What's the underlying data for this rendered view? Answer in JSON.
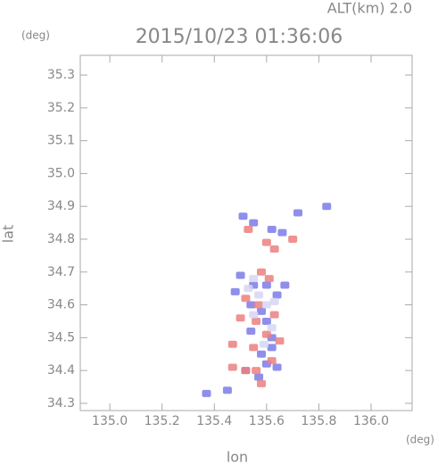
{
  "chart_data": {
    "type": "scatter",
    "title": "2015/10/23 01:36:06",
    "subtitle": "ALT(km) 2.0",
    "y_unit": "(deg)",
    "x_unit": "(deg)",
    "x_label": "lon",
    "y_label": "lat",
    "xlim": [
      134.887,
      136.157
    ],
    "ylim": [
      34.278,
      35.36
    ],
    "xticks": [
      {
        "value": 135,
        "label": "135.0"
      },
      135.2,
      135.4,
      135.6,
      135.8,
      {
        "value": 136,
        "label": "136.0"
      }
    ],
    "yticks": [
      34.3,
      34.4,
      34.5,
      34.6,
      34.7,
      34.8,
      34.9,
      {
        "value": 35,
        "label": "35.0"
      },
      35.1,
      35.2,
      35.3
    ],
    "series": [
      {
        "color": "#7b7be8",
        "x": [
          135.51,
          135.55,
          135.62,
          135.66,
          135.72,
          135.83,
          135.5,
          135.55,
          135.6,
          135.64,
          135.54,
          135.58,
          135.6,
          135.54,
          135.62,
          135.58,
          135.64,
          135.6,
          135.52,
          135.45,
          135.37,
          135.48,
          135.67,
          135.57,
          135.62
        ],
        "values": [
          34.87,
          34.85,
          34.83,
          34.82,
          34.88,
          34.9,
          34.69,
          34.66,
          34.66,
          34.63,
          34.6,
          34.58,
          34.55,
          34.52,
          34.5,
          34.45,
          34.41,
          34.42,
          34.4,
          34.34,
          34.33,
          34.64,
          34.66,
          34.38,
          34.47
        ]
      },
      {
        "color": "#ec7f7f",
        "x": [
          135.53,
          135.6,
          135.63,
          135.7,
          135.58,
          135.61,
          135.52,
          135.57,
          135.63,
          135.56,
          135.6,
          135.55,
          135.47,
          135.47,
          135.52,
          135.56,
          135.62,
          135.58,
          135.65,
          135.5
        ],
        "values": [
          34.83,
          34.79,
          34.77,
          34.8,
          34.7,
          34.68,
          34.62,
          34.6,
          34.57,
          34.55,
          34.51,
          34.47,
          34.48,
          34.41,
          34.4,
          34.4,
          34.43,
          34.36,
          34.49,
          34.56
        ]
      },
      {
        "color": "#d6d6f4",
        "x": [
          135.55,
          135.57,
          135.6,
          135.55,
          135.62,
          135.59,
          135.53,
          135.63
        ],
        "values": [
          34.68,
          34.63,
          34.6,
          34.57,
          34.53,
          34.48,
          34.65,
          34.61
        ]
      }
    ]
  }
}
